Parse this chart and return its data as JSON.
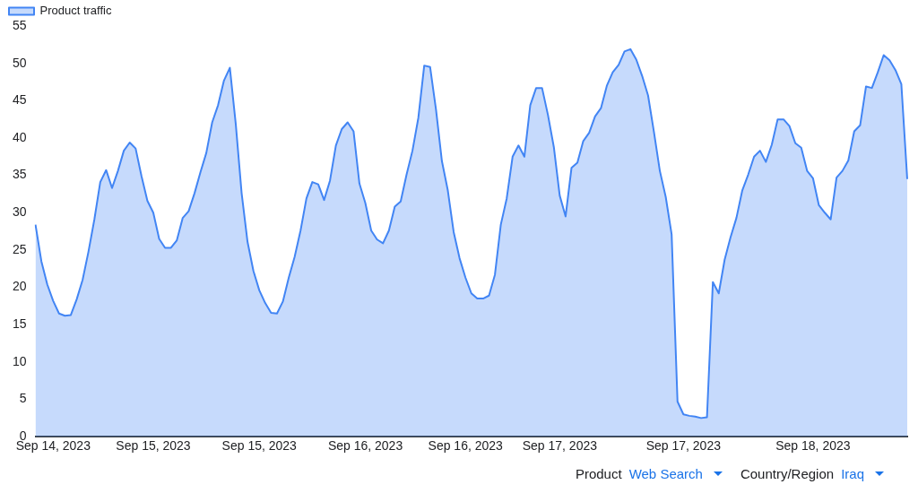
{
  "chart_data": {
    "type": "area",
    "categories": [
      null,
      null,
      null,
      "Sep 14, 2023",
      null,
      null,
      null,
      null,
      null,
      null,
      null,
      null,
      null,
      null,
      null,
      null,
      null,
      null,
      null,
      null,
      "Sep 15, 2023",
      null,
      null,
      null,
      null,
      null,
      null,
      null,
      null,
      null,
      null,
      null,
      null,
      null,
      null,
      null,
      null,
      null,
      "Sep 15, 2023",
      null,
      null,
      null,
      null,
      null,
      null,
      null,
      null,
      null,
      null,
      null,
      null,
      null,
      null,
      null,
      null,
      null,
      "Sep 16, 2023",
      null,
      null,
      null,
      null,
      null,
      null,
      null,
      null,
      null,
      null,
      null,
      null,
      null,
      null,
      null,
      null,
      "Sep 16, 2023",
      null,
      null,
      null,
      null,
      null,
      null,
      null,
      null,
      null,
      null,
      null,
      null,
      null,
      null,
      null,
      "Sep 17, 2023",
      null,
      null,
      null,
      null,
      null,
      null,
      null,
      null,
      null,
      null,
      null,
      null,
      null,
      null,
      null,
      null,
      null,
      null,
      null,
      null,
      "Sep 17, 2023",
      null,
      null,
      null,
      null,
      null,
      null,
      null,
      null,
      null,
      null,
      null,
      null,
      null,
      null,
      null,
      null,
      null,
      null,
      null,
      null,
      null,
      "Sep 18, 2023",
      null,
      null,
      null,
      null,
      null,
      null,
      null,
      null,
      null,
      null,
      null,
      null,
      null,
      null,
      null,
      null
    ],
    "series": [
      {
        "name": "Product traffic",
        "color": "#4285f4",
        "values": [
          28.4,
          23.5,
          20.4,
          18.2,
          16.5,
          16.2,
          16.3,
          18.4,
          21.0,
          24.8,
          29.1,
          34.1,
          35.7,
          33.3,
          35.6,
          38.3,
          39.4,
          38.6,
          34.9,
          31.6,
          30.0,
          26.5,
          25.3,
          25.3,
          26.3,
          29.3,
          30.2,
          32.6,
          35.4,
          38.0,
          42.1,
          44.4,
          47.7,
          49.4,
          41.9,
          32.6,
          26.1,
          22.2,
          19.6,
          17.9,
          16.6,
          16.5,
          18.1,
          21.3,
          24.1,
          27.6,
          31.9,
          34.1,
          33.8,
          31.7,
          34.3,
          39.0,
          41.2,
          42.1,
          40.9,
          33.9,
          31.3,
          27.6,
          26.4,
          25.9,
          27.6,
          30.8,
          31.5,
          35.1,
          38.3,
          42.7,
          49.7,
          49.5,
          43.8,
          36.9,
          33.0,
          27.4,
          23.9,
          21.3,
          19.2,
          18.5,
          18.5,
          18.9,
          21.7,
          28.4,
          31.9,
          37.5,
          39.0,
          37.5,
          44.4,
          46.7,
          46.7,
          43.1,
          38.8,
          32.3,
          29.5,
          36.0,
          36.7,
          39.6,
          40.7,
          42.9,
          44.0,
          47.0,
          48.8,
          49.8,
          51.6,
          51.9,
          50.5,
          48.3,
          45.7,
          40.8,
          35.6,
          32.1,
          27.1,
          4.7,
          3.0,
          2.8,
          2.7,
          2.5,
          2.6,
          20.7,
          19.2,
          23.7,
          26.7,
          29.3,
          33.0,
          35.1,
          37.5,
          38.3,
          36.8,
          39.1,
          42.5,
          42.5,
          41.6,
          39.3,
          38.7,
          35.6,
          34.6,
          31.0,
          30.0,
          29.1,
          34.7,
          35.6,
          37.0,
          40.9,
          41.7,
          46.9,
          46.7,
          48.8,
          51.1,
          50.4,
          49.1,
          47.2,
          34.5
        ]
      }
    ],
    "ylim": [
      0,
      55
    ],
    "yticks": [
      0,
      5,
      10,
      15,
      20,
      25,
      30,
      35,
      40,
      45,
      50,
      55
    ],
    "grid": false,
    "legend": "top left",
    "annotations": [
      "Product",
      "Web Search",
      "Country/Region",
      "Iraq"
    ]
  }
}
